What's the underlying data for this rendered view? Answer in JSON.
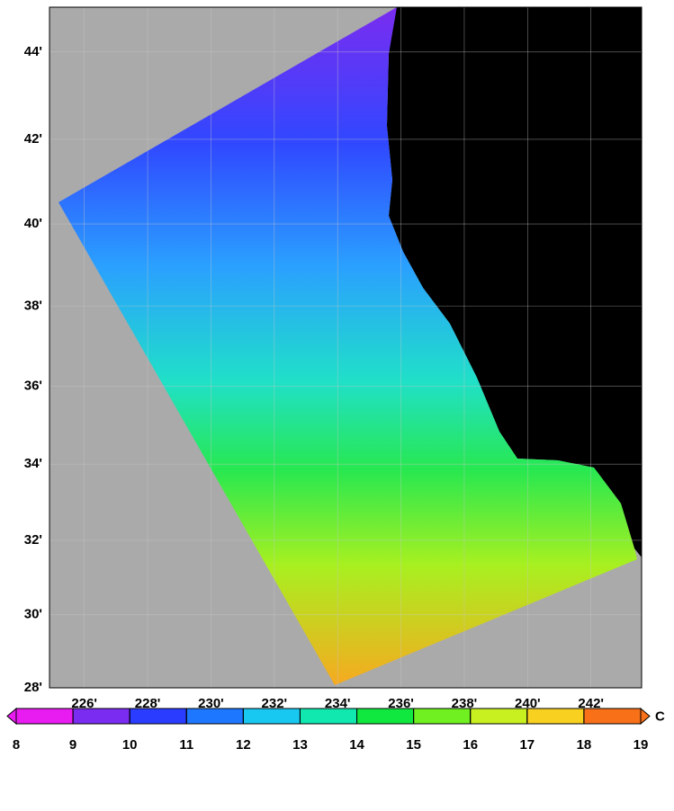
{
  "map": {
    "xlim": [
      224.9,
      243.6
    ],
    "ylim": [
      28,
      45
    ],
    "xticks": [
      {
        "value": 226,
        "label": "226'"
      },
      {
        "value": 228,
        "label": "228'"
      },
      {
        "value": 230,
        "label": "230'"
      },
      {
        "value": 232,
        "label": "232'"
      },
      {
        "value": 234,
        "label": "234'"
      },
      {
        "value": 236,
        "label": "236'"
      },
      {
        "value": 238,
        "label": "238'"
      },
      {
        "value": 240,
        "label": "240'"
      },
      {
        "value": 242,
        "label": "242'"
      }
    ],
    "yticks": [
      {
        "value": 28,
        "label": "28'"
      },
      {
        "value": 30,
        "label": "30'"
      },
      {
        "value": 32,
        "label": "32'"
      },
      {
        "value": 34,
        "label": "34'"
      },
      {
        "value": 36,
        "label": "36'"
      },
      {
        "value": 38,
        "label": "38'"
      },
      {
        "value": 40,
        "label": "40'"
      },
      {
        "value": 42,
        "label": "42'"
      },
      {
        "value": 44,
        "label": "44'"
      }
    ],
    "grid": true,
    "colorbar": {
      "ticks": [
        8,
        9,
        10,
        11,
        12,
        13,
        14,
        15,
        16,
        17,
        18,
        19
      ],
      "colors": [
        "#e81cf0",
        "#7a2cf0",
        "#2a3cff",
        "#1e78ff",
        "#18c8f0",
        "#10e8b0",
        "#10e840",
        "#70f020",
        "#c8f020",
        "#f8d020",
        "#f87018"
      ],
      "unit": "C"
    }
  }
}
